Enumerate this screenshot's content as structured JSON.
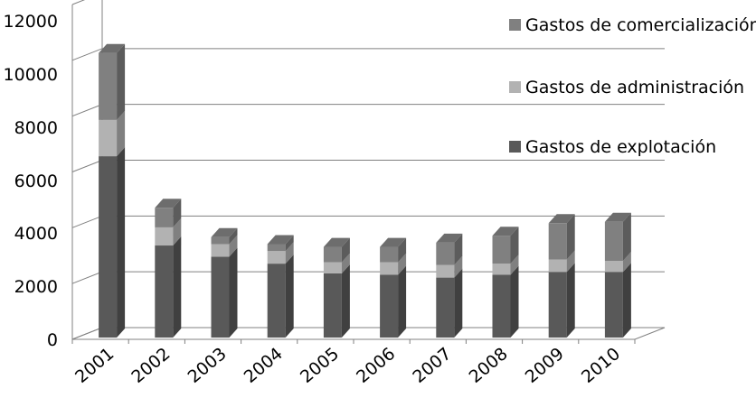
{
  "chart_data": {
    "type": "bar",
    "stacked": true,
    "three_d": true,
    "categories": [
      "2001",
      "2002",
      "2003",
      "2004",
      "2005",
      "2006",
      "2007",
      "2008",
      "2009",
      "2010"
    ],
    "series": [
      {
        "name": "Gastos de explotación",
        "color": "#595959",
        "values": [
          6500,
          3300,
          2900,
          2650,
          2300,
          2250,
          2150,
          2250,
          2350,
          2350
        ]
      },
      {
        "name": "Gastos de administración",
        "color": "#b2b2b2",
        "values": [
          1300,
          650,
          450,
          450,
          400,
          450,
          450,
          400,
          450,
          400
        ]
      },
      {
        "name": "Gastos de comercialización",
        "color": "#808080",
        "values": [
          2400,
          700,
          250,
          250,
          550,
          550,
          800,
          1000,
          1300,
          1400
        ]
      }
    ],
    "ylim": [
      0,
      12000
    ],
    "yticks": [
      "0",
      "2000",
      "4000",
      "6000",
      "8000",
      "10000",
      "12000"
    ],
    "grid": true,
    "legend_position": "right"
  }
}
